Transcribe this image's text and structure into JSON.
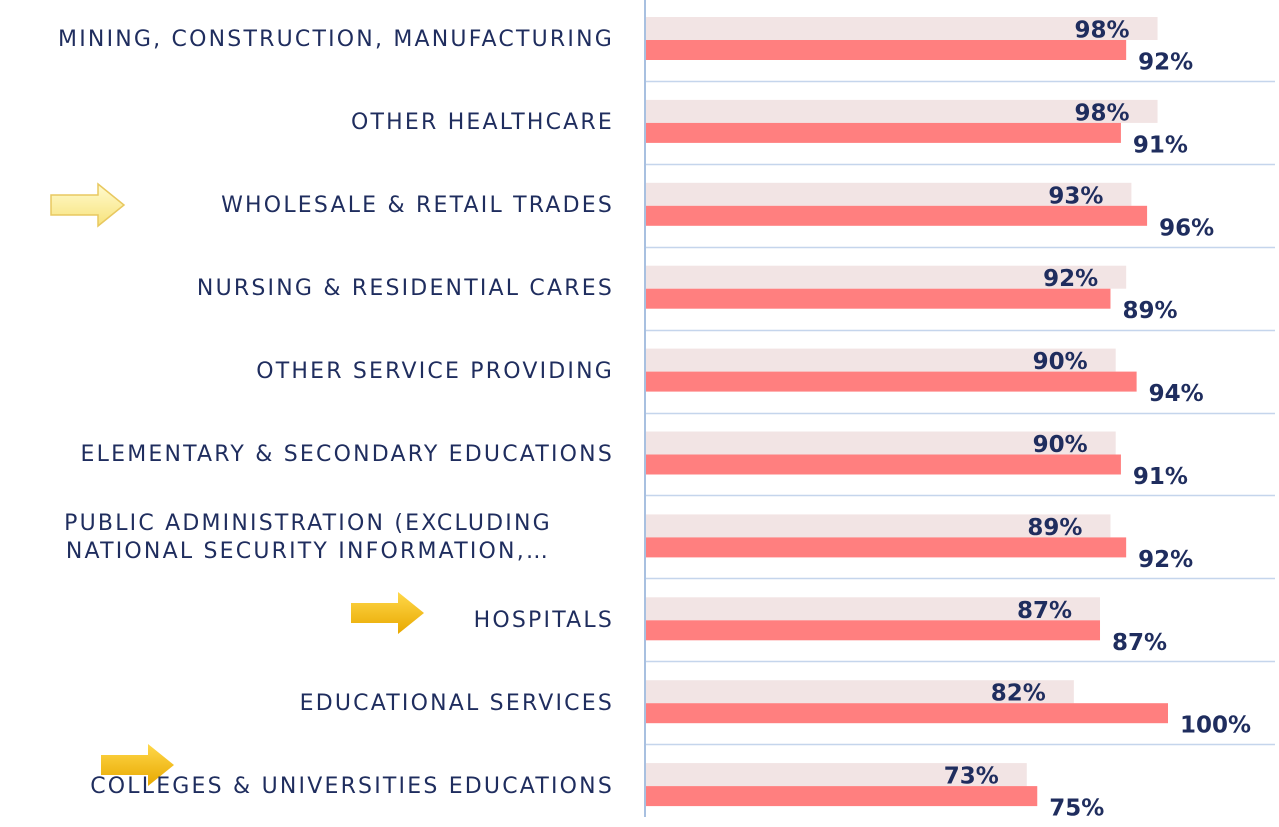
{
  "chart_data": {
    "type": "bar",
    "orientation": "horizontal",
    "categories": [
      "MINING, CONSTRUCTION, MANUFACTURING",
      "OTHER HEALTHCARE",
      "WHOLESALE & RETAIL TRADES",
      "NURSING & RESIDENTIAL CARES",
      "OTHER SERVICE PROVIDING",
      "ELEMENTARY & SECONDARY EDUCATIONS",
      "PUBLIC ADMINISTRATION (EXCLUDING NATIONAL SECURITY INFORMATION,…",
      "HOSPITALS",
      "EDUCATIONAL SERVICES",
      "COLLEGES & UNIVERSITIES EDUCATIONS"
    ],
    "series": [
      {
        "color": "#f2e4e4",
        "values": [
          98,
          98,
          93,
          92,
          90,
          90,
          89,
          87,
          82,
          73
        ],
        "value_labels": [
          "98%",
          "98%",
          "93%",
          "92%",
          "90%",
          "90%",
          "89%",
          "87%",
          "82%",
          "73%"
        ]
      },
      {
        "color": "#ff7f7f",
        "values": [
          92,
          91,
          96,
          89,
          94,
          91,
          92,
          87,
          100,
          75
        ],
        "value_labels": [
          "92%",
          "91%",
          "96%",
          "89%",
          "94%",
          "91%",
          "92%",
          "87%",
          "100%",
          "75%"
        ]
      }
    ],
    "xlim": [
      0,
      100
    ]
  }
}
